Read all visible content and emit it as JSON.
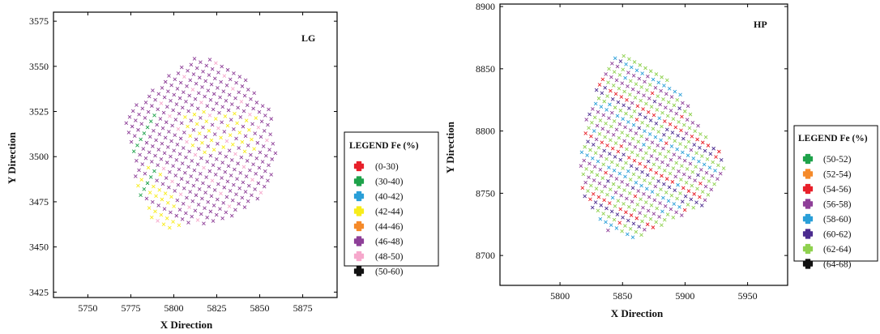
{
  "chart_data": [
    {
      "type": "scatter",
      "panel_label": "LG",
      "xlabel": "X Direction",
      "ylabel": "Y Direction",
      "xlim": [
        5730,
        5895
      ],
      "ylim": [
        3422,
        3580
      ],
      "x_ticks": [
        5750,
        5775,
        5800,
        5825,
        5850,
        5875
      ],
      "y_ticks": [
        3425,
        3450,
        3475,
        3500,
        3525,
        3550,
        3575
      ],
      "grid": false,
      "marker": "x",
      "legend_title": "LEGEND Fe (%)",
      "legend_position": "right",
      "classes": [
        {
          "label": "(0-30)",
          "color": "#e8202a"
        },
        {
          "label": "(30-40)",
          "color": "#1ea24a"
        },
        {
          "label": "(40-42)",
          "color": "#2a9fd8"
        },
        {
          "label": "(42-44)",
          "color": "#f7ec1b"
        },
        {
          "label": "(44-46)",
          "color": "#f58a2a"
        },
        {
          "label": "(46-48)",
          "color": "#8e3f98"
        },
        {
          "label": "(48-50)",
          "color": "#f6a8cc"
        },
        {
          "label": "(50-60)",
          "color": "#111111"
        }
      ],
      "region": [
        [
          5813,
          3557
        ],
        [
          5838,
          3547
        ],
        [
          5857,
          3525
        ],
        [
          5860,
          3500
        ],
        [
          5855,
          3480
        ],
        [
          5838,
          3468
        ],
        [
          5818,
          3463
        ],
        [
          5797,
          3459
        ],
        [
          5785,
          3467
        ],
        [
          5778,
          3485
        ],
        [
          5775,
          3506
        ],
        [
          5770,
          3520
        ],
        [
          5782,
          3533
        ],
        [
          5798,
          3546
        ]
      ],
      "grid_spacing": 4,
      "dominant_class": "(46-48)",
      "zones": [
        {
          "class": "(42-44)",
          "bands": [
            [
              3530,
              3521
            ],
            [
              3520,
              3510
            ],
            [
              3512,
              3500
            ]
          ],
          "x_range": [
            5795,
            5850
          ]
        },
        {
          "class": "(42-44)",
          "bands": [
            [
              3490,
              3475
            ],
            [
              3475,
              3460
            ]
          ],
          "x_range": [
            5778,
            5810
          ]
        },
        {
          "class": "(30-40)",
          "bands": [
            [
              3522,
              3470
            ]
          ],
          "x_range": [
            5772,
            5800
          ]
        },
        {
          "class": "(48-50)",
          "bands": [
            [
              3545,
              3470
            ]
          ],
          "x_range": [
            5790,
            5855
          ]
        }
      ]
    },
    {
      "type": "scatter",
      "panel_label": "HP",
      "xlabel": "X Direction",
      "ylabel": "Y Direction",
      "xlim": [
        5752,
        5982
      ],
      "ylim": [
        8676,
        8902
      ],
      "x_ticks": [
        5800,
        5850,
        5900,
        5950
      ],
      "y_ticks": [
        8700,
        8750,
        8800,
        8850,
        8900
      ],
      "grid": false,
      "marker": "x",
      "legend_title": "LEGEND Fe (%)",
      "legend_position": "right",
      "classes": [
        {
          "label": "(50-52)",
          "color": "#1ea24a"
        },
        {
          "label": "(52-54)",
          "color": "#f58a2a"
        },
        {
          "label": "(54-56)",
          "color": "#e8202a"
        },
        {
          "label": "(56-58)",
          "color": "#8e3f98"
        },
        {
          "label": "(58-60)",
          "color": "#2a9fd8"
        },
        {
          "label": "(60-62)",
          "color": "#4b2b8f"
        },
        {
          "label": "(62-64)",
          "color": "#8fd14f"
        },
        {
          "label": "(64-68)",
          "color": "#111111"
        }
      ],
      "region": [
        [
          5848,
          8863
        ],
        [
          5880,
          8848
        ],
        [
          5900,
          8825
        ],
        [
          5915,
          8800
        ],
        [
          5930,
          8780
        ],
        [
          5932,
          8765
        ],
        [
          5915,
          8740
        ],
        [
          5885,
          8725
        ],
        [
          5860,
          8713
        ],
        [
          5838,
          8720
        ],
        [
          5818,
          8750
        ],
        [
          5816,
          8780
        ],
        [
          5822,
          8815
        ],
        [
          5835,
          8848
        ]
      ],
      "grid_spacing": 5,
      "stripe_pattern": [
        "(62-64)",
        "(56-58)",
        "(58-60)",
        "(62-64)",
        "(60-62)",
        "(54-56)",
        "(62-64)",
        "(56-58)"
      ]
    }
  ]
}
